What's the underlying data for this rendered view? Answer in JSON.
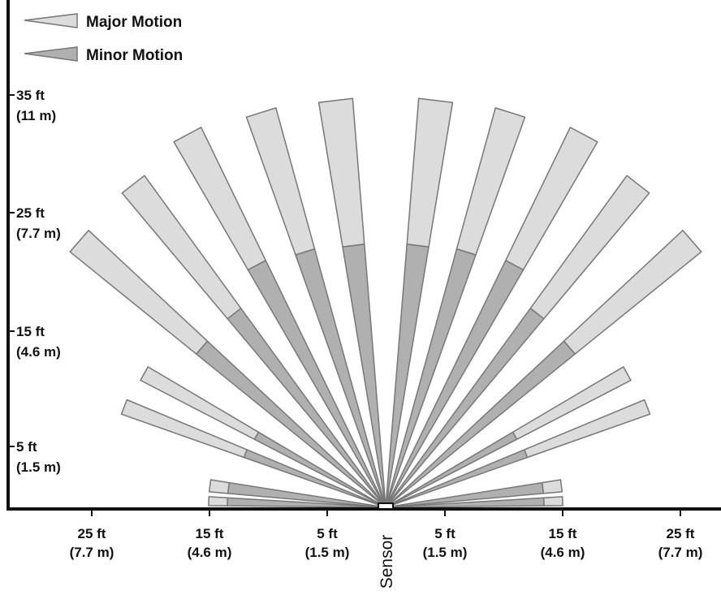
{
  "legend": {
    "major_label": "Major Motion",
    "minor_label": "Minor Motion",
    "major_color": "#dcdcdc",
    "minor_color": "#b0b0b0"
  },
  "y_axis": {
    "ticks": [
      {
        "value": "35 ft",
        "metric": "(11 m)"
      },
      {
        "value": "25 ft",
        "metric": "(7.7 m)"
      },
      {
        "value": "15 ft",
        "metric": "(4.6 m)"
      },
      {
        "value": "5 ft",
        "metric": "(1.5 m)"
      }
    ]
  },
  "x_axis": {
    "ticks": [
      {
        "value": "25 ft",
        "metric": "(7.7 m)"
      },
      {
        "value": "15 ft",
        "metric": "(4.6 m)"
      },
      {
        "value": "5 ft",
        "metric": "(1.5 m)"
      },
      {
        "value": "5 ft",
        "metric": "(1.5 m)"
      },
      {
        "value": "15 ft",
        "metric": "(4.6 m)"
      },
      {
        "value": "25 ft",
        "metric": "(7.7 m)"
      }
    ],
    "sensor_label": "Sensor"
  },
  "colors": {
    "axis": "#111111",
    "outline": "#777777"
  }
}
